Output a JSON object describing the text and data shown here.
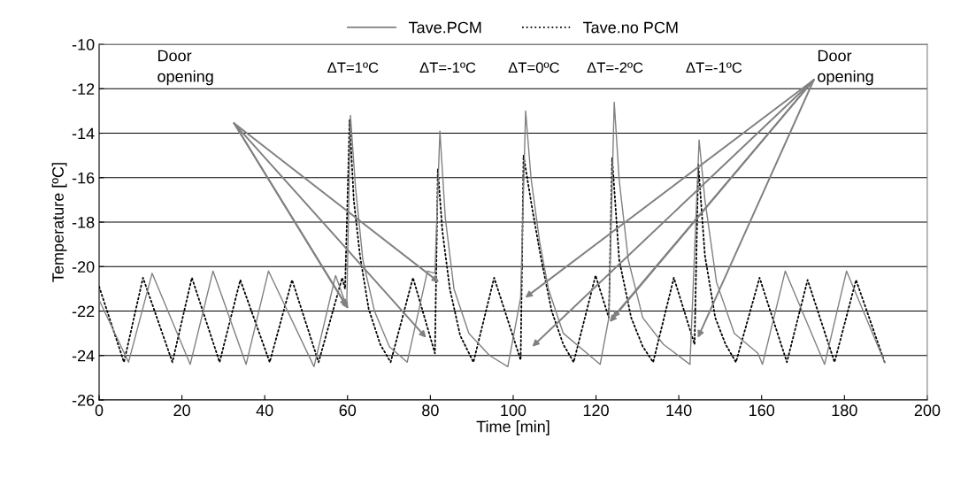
{
  "chart_data": {
    "type": "line",
    "xlabel": "Time [min]",
    "ylabel": "Temperature [ºC]",
    "xlim": [
      0,
      200
    ],
    "xticks": [
      0,
      20,
      40,
      60,
      80,
      100,
      120,
      140,
      160,
      180,
      200
    ],
    "ylim": [
      -26,
      -10
    ],
    "yticks": [
      -26,
      -24,
      -22,
      -20,
      -18,
      -16,
      -14,
      -12,
      -10
    ],
    "grid": "y",
    "legend": "top",
    "marker": "none",
    "series": [
      {
        "name": "Tave.PCM",
        "color": "#808080",
        "line_style": "solid",
        "x": [
          0,
          7.1,
          12.8,
          22.0,
          27.5,
          35.5,
          40.9,
          51.9,
          57.1,
          59.8,
          60.7,
          61.9,
          63.7,
          66.5,
          70.1,
          74.4,
          79.3,
          81.1,
          82.3,
          83.6,
          85.7,
          89.3,
          94.3,
          98.7,
          101.8,
          103.0,
          104.3,
          106.4,
          108.5,
          112.1,
          121.0,
          123.1,
          124.4,
          125.6,
          127.8,
          131.3,
          136.3,
          142.7,
          144.9,
          146.3,
          149.1,
          153.4,
          159.1,
          160.2,
          165.7,
          175.2,
          180.5,
          189.7
        ],
        "values": [
          -21.5,
          -24.3,
          -20.3,
          -24.4,
          -20.2,
          -24.4,
          -20.2,
          -24.5,
          -20.4,
          -21.8,
          -13.2,
          -16.4,
          -19.7,
          -22.0,
          -23.6,
          -24.3,
          -20.2,
          -20.3,
          -13.9,
          -17.8,
          -21.0,
          -23.0,
          -24.0,
          -24.5,
          -21.4,
          -13.0,
          -16.0,
          -18.9,
          -21.0,
          -23.0,
          -24.4,
          -22.3,
          -12.6,
          -16.1,
          -19.7,
          -22.3,
          -23.5,
          -24.4,
          -14.3,
          -17.0,
          -20.7,
          -23.0,
          -23.9,
          -24.4,
          -20.2,
          -24.4,
          -20.2,
          -24.3
        ]
      },
      {
        "name": "Tave.no PCM",
        "color": "#000000",
        "line_style": "dotted",
        "x": [
          0,
          6.0,
          10.6,
          17.7,
          22.4,
          29.1,
          34.1,
          41.2,
          46.6,
          53.0,
          58.7,
          59.4,
          60.5,
          61.5,
          63.0,
          65.1,
          67.9,
          70.4,
          75.8,
          81.1,
          81.8,
          82.9,
          84.7,
          87.2,
          90.4,
          95.4,
          101.8,
          102.5,
          104.6,
          106.8,
          109.3,
          112.1,
          114.6,
          119.9,
          123.1,
          123.9,
          125.6,
          128.5,
          131.3,
          133.8,
          138.8,
          143.8,
          144.7,
          146.3,
          148.8,
          151.3,
          153.8,
          159.5,
          166.1,
          171.1,
          177.6,
          182.8,
          189.7
        ],
        "values": [
          -20.9,
          -24.3,
          -20.5,
          -24.3,
          -20.5,
          -24.3,
          -20.6,
          -24.3,
          -20.6,
          -24.3,
          -20.5,
          -21.0,
          -13.4,
          -17.0,
          -19.5,
          -21.9,
          -23.5,
          -24.3,
          -20.5,
          -23.9,
          -15.6,
          -18.4,
          -21.0,
          -23.1,
          -24.3,
          -20.5,
          -24.2,
          -15.0,
          -17.4,
          -19.7,
          -22.0,
          -23.5,
          -24.3,
          -20.4,
          -22.3,
          -15.1,
          -19.7,
          -22.3,
          -23.6,
          -24.3,
          -20.5,
          -23.5,
          -15.4,
          -19.5,
          -22.3,
          -23.5,
          -24.3,
          -20.5,
          -24.3,
          -20.6,
          -24.3,
          -20.6,
          -24.3
        ]
      }
    ],
    "annotations": [
      "ΔT=1ºC",
      "ΔT=-1ºC",
      "ΔT=0ºC",
      "ΔT=-2ºC",
      "ΔT=-1ºC",
      "Door\nopening",
      {
        "text": "Door\nopening",
        "x": 144.6,
        "y": -23.2
      }
    ]
  }
}
